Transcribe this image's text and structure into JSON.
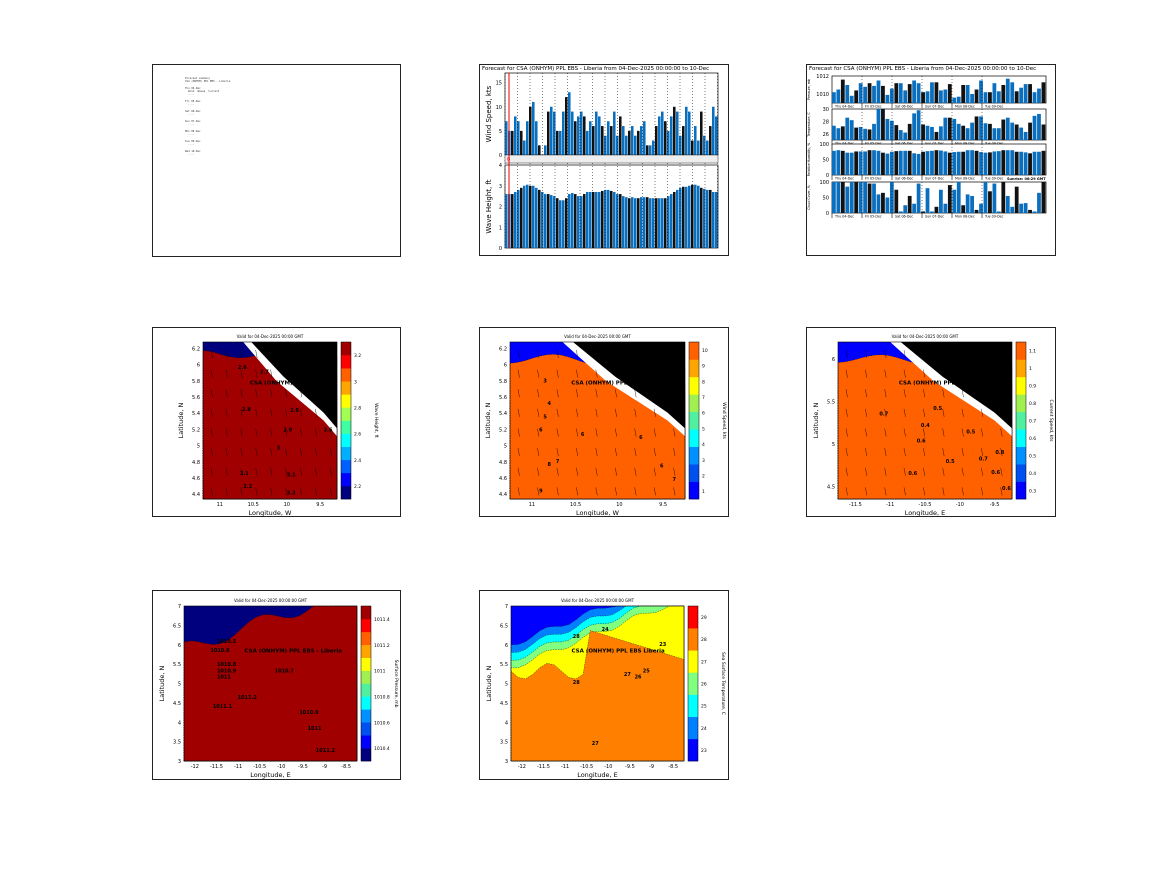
{
  "document_panel": {
    "lines": [
      "Forecast summary",
      "CSA (ONHYM) PPL EBS - Liberia",
      "",
      "Thu 04-Dec",
      "  Wind  Waves  Current",
      "  ....",
      "",
      "Fri 05-Dec",
      "  ....",
      "",
      "Sat 06-Dec",
      "  ....",
      "",
      "Sun 07-Dec",
      "  ....",
      "",
      "Mon 08-Dec",
      "  ....",
      "",
      "Tue 09-Dec",
      "  ....",
      "",
      "Wed 10-Dec",
      "  ...."
    ]
  },
  "chart_data": [
    {
      "type": "bar",
      "title": "Forecast for CSA (ONHYM) PPL EBS - Liberia from 04-Dec-2025 00:00:00 to 10-Dec",
      "subplots": [
        {
          "ylabel": "Wind Speed, kts",
          "ylim": [
            0,
            17
          ],
          "yticks": [
            "0",
            "5",
            "10",
            "15"
          ],
          "ytick_values": [
            0,
            5,
            10,
            15
          ],
          "values": [
            7,
            5,
            5,
            8,
            7,
            5,
            3,
            7,
            10,
            11,
            7,
            2,
            0,
            2,
            9,
            10,
            9,
            5,
            5,
            9,
            12,
            13,
            9,
            7,
            8,
            9,
            8,
            5,
            7,
            6,
            9,
            8,
            6,
            4,
            7,
            6,
            9,
            4,
            8,
            6,
            4,
            5,
            6,
            4,
            5,
            6,
            7,
            2,
            2,
            3,
            6,
            8,
            9,
            7,
            5,
            8,
            10,
            9,
            4,
            6,
            10,
            9,
            3,
            6,
            3,
            9,
            4,
            3,
            6,
            10,
            8
          ]
        },
        {
          "ylabel": "Wave Height, ft",
          "ylim": [
            0,
            4
          ],
          "yticks": [
            "0",
            "1",
            "2",
            "3",
            "4"
          ],
          "ytick_values": [
            0,
            1,
            2,
            3,
            4
          ],
          "values": [
            2.6,
            2.6,
            2.6,
            2.7,
            2.8,
            2.9,
            3.0,
            3.05,
            3.0,
            3.0,
            2.9,
            2.8,
            2.7,
            2.6,
            2.6,
            2.55,
            2.5,
            2.4,
            2.3,
            2.3,
            2.4,
            2.6,
            2.65,
            2.6,
            2.5,
            2.5,
            2.6,
            2.7,
            2.7,
            2.7,
            2.7,
            2.7,
            2.75,
            2.8,
            2.8,
            2.75,
            2.7,
            2.6,
            2.6,
            2.5,
            2.45,
            2.4,
            2.45,
            2.4,
            2.4,
            2.45,
            2.45,
            2.45,
            2.4,
            2.4,
            2.4,
            2.4,
            2.4,
            2.4,
            2.5,
            2.6,
            2.7,
            2.8,
            2.9,
            2.95,
            2.95,
            3.0,
            3.05,
            3.05,
            3.0,
            2.9,
            2.85,
            2.8,
            2.8,
            2.7,
            2.7
          ]
        }
      ],
      "now_marker": "0",
      "bar_color": "#0b6fbf"
    },
    {
      "type": "bar",
      "title": "Forecast for CSA (ONHYM) PPL EBS - Liberia from 04-Dec-2025 00:00:00 to 10-Dec",
      "day_labels": [
        "Thu 04-Dec",
        "Fri 05-Dec",
        "Sat 06-Dec",
        "Sun 07-Dec",
        "Mon 08-Dec",
        "Tue 09-Dec"
      ],
      "subplots": [
        {
          "ylabel": "Pressure, mb",
          "ylim": [
            1009,
            1012
          ],
          "yticks": [
            "1010",
            "1012"
          ],
          "ytick_values": [
            1010,
            1012
          ],
          "values": [
            1010.2,
            1010.5,
            1011.6,
            1011.0,
            1009.8,
            1010.4,
            1011.2,
            1010.8,
            1011.2,
            1010.9,
            1011.5,
            1010.9,
            1009.9,
            1010.6,
            1011.2,
            1011.2,
            1010.4,
            1011.1,
            1011.5,
            1011.2,
            1010.2,
            1010.3,
            1011.3,
            1011.3,
            1010.4,
            1010.5,
            1011.1,
            1009.6,
            1009.7,
            1011.0,
            1011.0,
            1010.0,
            1010.5,
            1011.5,
            1010.2,
            1010.2,
            1011.2,
            1010.3,
            1011.0,
            1011.7,
            1011.3,
            1010.3,
            1010.7,
            1011.1,
            1011.1,
            1010.2,
            1010.6,
            1011.3
          ]
        },
        {
          "ylabel": "Temperature, C",
          "ylim": [
            25,
            30
          ],
          "yticks": [
            "26",
            "28",
            "30"
          ],
          "ytick_values": [
            26,
            28,
            30
          ],
          "values": [
            27.3,
            26.9,
            27.2,
            28.6,
            28.2,
            27.0,
            27.1,
            26.8,
            26.7,
            27.6,
            30,
            30,
            28.4,
            28.1,
            27.4,
            26.6,
            26.2,
            27.6,
            29.3,
            29.8,
            27.5,
            27.3,
            27.1,
            26.3,
            27.2,
            28.6,
            28.6,
            28.4,
            27.6,
            27.3,
            26.9,
            27.8,
            28.8,
            28.8,
            27.7,
            27.6,
            26.9,
            26.9,
            28.3,
            28.6,
            27.8,
            27.5,
            27.0,
            26.3,
            27.8,
            28.9,
            29.2,
            27.5
          ]
        },
        {
          "ylabel": "Relative Humidity, %",
          "ylim": [
            0,
            100
          ],
          "yticks": [
            "0",
            "50",
            "100"
          ],
          "ytick_values": [
            0,
            50,
            100
          ],
          "values": [
            78,
            80,
            78,
            72,
            72,
            76,
            76,
            76,
            80,
            80,
            78,
            72,
            69,
            75,
            77,
            78,
            78,
            78,
            70,
            68,
            75,
            77,
            78,
            80,
            79,
            76,
            72,
            74,
            75,
            75,
            80,
            80,
            78,
            74,
            72,
            73,
            76,
            77,
            80,
            80,
            80,
            75,
            75,
            73,
            70,
            75,
            75,
            78
          ]
        },
        {
          "ylabel": "Cloud Cover, %",
          "ylim": [
            0,
            100
          ],
          "yticks": [
            "0",
            "50",
            "100"
          ],
          "ytick_values": [
            0,
            50,
            100
          ],
          "values": [
            100,
            100,
            100,
            85,
            100,
            100,
            100,
            100,
            95,
            95,
            60,
            65,
            50,
            100,
            75,
            5,
            25,
            55,
            30,
            95,
            5,
            80,
            5,
            20,
            75,
            30,
            90,
            75,
            100,
            25,
            60,
            55,
            10,
            30,
            100,
            70,
            95,
            5,
            100,
            55,
            20,
            85,
            30,
            32,
            10,
            5,
            65,
            100
          ]
        }
      ],
      "annotation": "Sunrise: 06:29 GMT",
      "bar_color": "#0b6fbf"
    },
    {
      "type": "heatmap",
      "title": "Valid for 04-Dec-2025 00:00 GMT",
      "xlabel": "Longitude, W",
      "ylabel": "Latitude, N",
      "colorbar_label": "Wave Height, ft",
      "xticks": [
        "11",
        "10.5",
        "10",
        "9.5"
      ],
      "yticks": [
        "4.4",
        "4.6",
        "4.8",
        "5",
        "5.2",
        "5.4",
        "5.6",
        "5.8",
        "6",
        "6.2"
      ],
      "colorbar_ticks": [
        "2.2",
        "2.4",
        "2.6",
        "2.8",
        "3",
        "3.2"
      ],
      "colors": [
        "#00007f",
        "#0000ff",
        "#0060ff",
        "#00b0ff",
        "#00ffff",
        "#40ffa0",
        "#a0ff50",
        "#ffff00",
        "#ffa500",
        "#ff6000",
        "#ff0000",
        "#a00000"
      ],
      "station": "CSA (ONHYM) PPL EBS",
      "contour_labels": [
        "2.6",
        "2.7",
        "2.8",
        "2.9",
        "2.9",
        "3",
        "3.1",
        "3.1",
        "3.2",
        "3.2",
        "2.6"
      ]
    },
    {
      "type": "heatmap",
      "title": "Valid for 04-Dec-2025 00:00 GMT",
      "xlabel": "Longitude, W",
      "ylabel": "Latitude, N",
      "colorbar_label": "Wind Speed, kts",
      "xticks": [
        "11",
        "10.5",
        "10",
        "9.5"
      ],
      "yticks": [
        "4.4",
        "4.6",
        "4.8",
        "5",
        "5.2",
        "5.4",
        "5.6",
        "5.8",
        "6",
        "6.2"
      ],
      "colorbar_ticks": [
        "1",
        "2",
        "3",
        "4",
        "5",
        "6",
        "7",
        "8",
        "9",
        "10"
      ],
      "colors": [
        "#0000ff",
        "#0050f0",
        "#0090ff",
        "#00ffff",
        "#50f0a0",
        "#a0f050",
        "#ffff00",
        "#ffa500",
        "#ff6000"
      ],
      "station": "CSA (ONHYM) PPL EBS",
      "contour_labels": [
        "3",
        "4",
        "5",
        "6",
        "6",
        "6",
        "7",
        "8",
        "9",
        "6",
        "7"
      ]
    },
    {
      "type": "heatmap",
      "title": "Valid for 04-Dec-2025 00:00 GMT",
      "xlabel": "Longitude, E",
      "ylabel": "Latitude, N",
      "colorbar_label": "Current Speed, kts",
      "xticks": [
        "-11.5",
        "-11",
        "-10.5",
        "-10",
        "-9.5"
      ],
      "yticks": [
        "4.5",
        "5",
        "5.5",
        "6"
      ],
      "colorbar_ticks": [
        "0.3",
        "0.4",
        "0.5",
        "0.6",
        "0.7",
        "0.8",
        "0.9",
        "1",
        "1.1"
      ],
      "colors": [
        "#0000ff",
        "#0050f0",
        "#0090ff",
        "#00ffff",
        "#50f0a0",
        "#a0f050",
        "#ffff00",
        "#ffa500",
        "#ff6000"
      ],
      "station": "CSA (ONHYM) PPL EBS",
      "contour_labels": [
        "0.7",
        "0.6",
        "0.6",
        "0.5",
        "0.5",
        "0.5",
        "0.4",
        "0.7",
        "0.8",
        "0.6",
        "0.6"
      ]
    },
    {
      "type": "heatmap",
      "title": "Valid for 04-Dec-2025 00:00:00 GMT",
      "xlabel": "Longitude, E",
      "ylabel": "Latitude, N",
      "colorbar_label": "Surface Pressure, mb",
      "xticks": [
        "-12",
        "-11.5",
        "-11",
        "-10.5",
        "-10",
        "-9.5",
        "-9",
        "-8.5"
      ],
      "yticks": [
        "3",
        "3.5",
        "4",
        "4.5",
        "5",
        "5.5",
        "6",
        "6.5",
        "7"
      ],
      "colorbar_ticks": [
        "1010.4",
        "1010.6",
        "1010.8",
        "1011",
        "1011.2",
        "1011.4"
      ],
      "colors": [
        "#00007f",
        "#0000ff",
        "#0050f0",
        "#0090ff",
        "#00ffff",
        "#50f0a0",
        "#a0f050",
        "#ffff00",
        "#ffa500",
        "#ff6000",
        "#ff0000",
        "#a00000"
      ],
      "station": "CSA (ONHYM) PPL EBS - Liberia",
      "contour_labels": [
        "1010.5",
        "1010.6",
        "1010.8",
        "1010.9",
        "1011",
        "1011.1",
        "1011.2",
        "1010.9",
        "1011",
        "1011.2",
        "1010.7"
      ]
    },
    {
      "type": "heatmap",
      "title": "Valid for 04-Dec-2025 00:00:00 GMT",
      "xlabel": "Longitude, E",
      "ylabel": "Latitude, N",
      "colorbar_label": "Sea Surface Temperature, C",
      "xticks": [
        "-12",
        "-11.5",
        "-11",
        "-10.5",
        "-10",
        "-9.5",
        "-9",
        "-8.5"
      ],
      "yticks": [
        "3",
        "3.5",
        "4",
        "4.5",
        "5",
        "5.5",
        "6",
        "6.5",
        "7"
      ],
      "colorbar_ticks": [
        "23",
        "24",
        "25",
        "26",
        "27",
        "28",
        "29"
      ],
      "colors": [
        "#0000ff",
        "#0080ff",
        "#00ffff",
        "#80ff80",
        "#ffff00",
        "#ff8000",
        "#ff0000"
      ],
      "station": "CSA (ONHYM) PPL EBS    Liberia",
      "contour_labels": [
        "28",
        "28",
        "27",
        "26",
        "25",
        "24",
        "23",
        "27"
      ]
    }
  ]
}
